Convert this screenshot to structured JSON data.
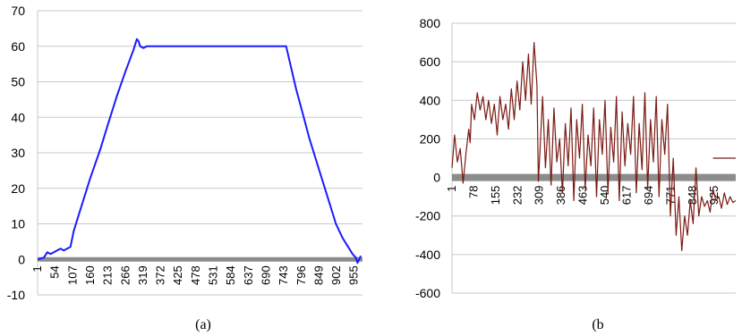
{
  "chart_data": [
    {
      "type": "line",
      "caption": "(a)",
      "ylim": [
        -10,
        70
      ],
      "yticks": [
        -10,
        0,
        10,
        20,
        30,
        40,
        50,
        60,
        70
      ],
      "xlim": [
        1,
        980
      ],
      "xticks": [
        1,
        54,
        107,
        160,
        213,
        266,
        319,
        372,
        425,
        478,
        531,
        584,
        637,
        690,
        743,
        796,
        849,
        902,
        955
      ],
      "grid": true,
      "colors": {
        "line": "#1a1aff",
        "zero": "#8c8c8c",
        "grid": "#c8c8c8"
      },
      "series": [
        {
          "x": [
            1,
            20,
            30,
            40,
            50,
            60,
            70,
            80,
            90,
            100,
            110,
            130,
            160,
            190,
            213,
            240,
            266,
            290,
            300,
            305,
            310,
            320,
            330,
            350,
            400,
            450,
            500,
            550,
            600,
            650,
            700,
            740,
            750,
            760,
            780,
            800,
            820,
            840,
            860,
            880,
            900,
            920,
            940,
            950,
            960,
            965,
            970,
            975
          ],
          "y": [
            0,
            0.5,
            2,
            1.5,
            2,
            2.5,
            3,
            2.5,
            3,
            3.5,
            8,
            14,
            23,
            31,
            38,
            46,
            53,
            59,
            62,
            61.5,
            60,
            59.5,
            60,
            60,
            60,
            60,
            60,
            60,
            60,
            60,
            60,
            60,
            60,
            56,
            48,
            41,
            34,
            28,
            22,
            16,
            10,
            6,
            3,
            1.5,
            0.5,
            -1,
            0,
            1
          ]
        }
      ]
    },
    {
      "type": "line",
      "caption": "(b",
      "ylim": [
        -600,
        800
      ],
      "yticks": [
        -600,
        -400,
        -200,
        0,
        200,
        400,
        600,
        800
      ],
      "xlim": [
        1,
        1000
      ],
      "xticks": [
        1,
        78,
        155,
        232,
        309,
        386,
        463,
        540,
        617,
        694,
        771,
        848,
        925
      ],
      "xtick_labels": [
        "1",
        "78",
        "155",
        "232",
        "309",
        "386",
        "463",
        "540",
        "617",
        "694",
        "771",
        "848",
        "925"
      ],
      "grid": true,
      "colors": {
        "line": "#7a1a14",
        "zero": "#8c8c8c",
        "grid": "#c8c8c8"
      },
      "series": [
        {
          "x": [
            1,
            10,
            20,
            30,
            40,
            50,
            60,
            65,
            70,
            80,
            90,
            100,
            110,
            120,
            130,
            140,
            150,
            160,
            170,
            180,
            190,
            200,
            210,
            220,
            230,
            240,
            250,
            260,
            270,
            280,
            290,
            300,
            305,
            310,
            320,
            330,
            340,
            350,
            360,
            370,
            380,
            390,
            400,
            410,
            420,
            430,
            440,
            450,
            460,
            470,
            480,
            490,
            500,
            510,
            520,
            530,
            540,
            550,
            560,
            570,
            580,
            590,
            600,
            610,
            620,
            630,
            640,
            650,
            660,
            670,
            680,
            690,
            700,
            710,
            720,
            730,
            740,
            750,
            760,
            770,
            780,
            790,
            800,
            810,
            820,
            830,
            840,
            850,
            860,
            870,
            880,
            890,
            900,
            910,
            920,
            930,
            940,
            950,
            960,
            970,
            980,
            990,
            1000
          ],
          "y": [
            50,
            220,
            80,
            150,
            -30,
            120,
            250,
            180,
            380,
            300,
            440,
            350,
            420,
            300,
            400,
            280,
            380,
            220,
            420,
            300,
            380,
            250,
            460,
            300,
            500,
            350,
            600,
            400,
            640,
            380,
            700,
            480,
            -20,
            120,
            420,
            50,
            300,
            -40,
            360,
            80,
            200,
            -80,
            280,
            60,
            360,
            -120,
            300,
            100,
            380,
            -60,
            220,
            60,
            360,
            -100,
            300,
            120,
            400,
            -80,
            260,
            80,
            420,
            -120,
            340,
            60,
            280,
            120,
            420,
            -80,
            280,
            40,
            440,
            -60,
            300,
            80,
            420,
            -100,
            300,
            120,
            380,
            -200,
            100,
            -300,
            -100,
            -380,
            -200,
            -300,
            -120,
            -240,
            50,
            -200,
            -100,
            -150,
            -120,
            -180,
            -60,
            -120,
            -100,
            -160,
            -80,
            -140,
            -100,
            -130,
            -120
          ]
        },
        {
          "x": [
            920,
            1010
          ],
          "y": [
            100,
            100
          ]
        }
      ]
    }
  ]
}
